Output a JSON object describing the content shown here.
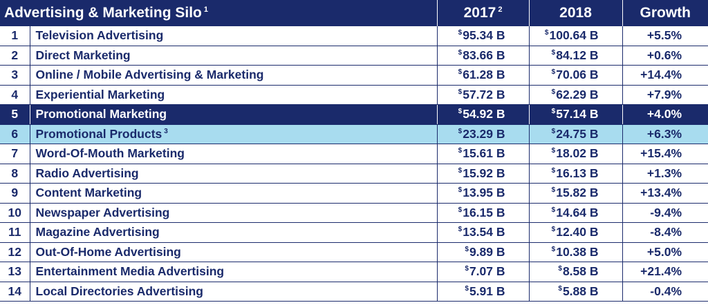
{
  "header": {
    "silo": "Advertising & Marketing Silo",
    "silo_note": "1",
    "year1": "2017",
    "year1_note": "2",
    "year2": "2018",
    "growth": "Growth"
  },
  "currency_symbol": "$",
  "colors": {
    "navy": "#1a2a6b",
    "light_blue": "#a8dcef",
    "white": "#ffffff"
  },
  "rows": [
    {
      "rank": "1",
      "name": "Television Advertising",
      "v2017": "95.34 B",
      "v2018": "100.64 B",
      "growth": "+5.5%"
    },
    {
      "rank": "2",
      "name": "Direct Marketing",
      "v2017": "83.66 B",
      "v2018": "84.12 B",
      "growth": "+0.6%"
    },
    {
      "rank": "3",
      "name": "Online / Mobile Advertising & Marketing",
      "v2017": "61.28 B",
      "v2018": "70.06 B",
      "growth": "+14.4%"
    },
    {
      "rank": "4",
      "name": "Experiential Marketing",
      "v2017": "57.72 B",
      "v2018": "62.29 B",
      "growth": "+7.9%"
    },
    {
      "rank": "5",
      "name": "Promotional Marketing",
      "v2017": "54.92 B",
      "v2018": "57.14 B",
      "growth": "+4.0%",
      "highlight": "dark"
    },
    {
      "rank": "6",
      "name": "Promotional Products",
      "name_note": "3",
      "v2017": "23.29 B",
      "v2018": "24.75 B",
      "growth": "+6.3%",
      "highlight": "light"
    },
    {
      "rank": "7",
      "name": "Word-Of-Mouth Marketing",
      "v2017": "15.61 B",
      "v2018": "18.02 B",
      "growth": "+15.4%"
    },
    {
      "rank": "8",
      "name": "Radio Advertising",
      "v2017": "15.92 B",
      "v2018": "16.13 B",
      "growth": "+1.3%"
    },
    {
      "rank": "9",
      "name": "Content Marketing",
      "v2017": "13.95 B",
      "v2018": "15.82 B",
      "growth": "+13.4%"
    },
    {
      "rank": "10",
      "name": "Newspaper Advertising",
      "v2017": "16.15 B",
      "v2018": "14.64 B",
      "growth": "-9.4%"
    },
    {
      "rank": "11",
      "name": "Magazine Advertising",
      "v2017": "13.54 B",
      "v2018": "12.40 B",
      "growth": "-8.4%"
    },
    {
      "rank": "12",
      "name": "Out-Of-Home Advertising",
      "v2017": "9.89 B",
      "v2018": "10.38 B",
      "growth": "+5.0%"
    },
    {
      "rank": "13",
      "name": "Entertainment Media Advertising",
      "v2017": "7.07 B",
      "v2018": "8.58 B",
      "growth": "+21.4%"
    },
    {
      "rank": "14",
      "name": "Local Directories Advertising",
      "v2017": "5.91 B",
      "v2018": "5.88 B",
      "growth": "-0.4%"
    }
  ]
}
